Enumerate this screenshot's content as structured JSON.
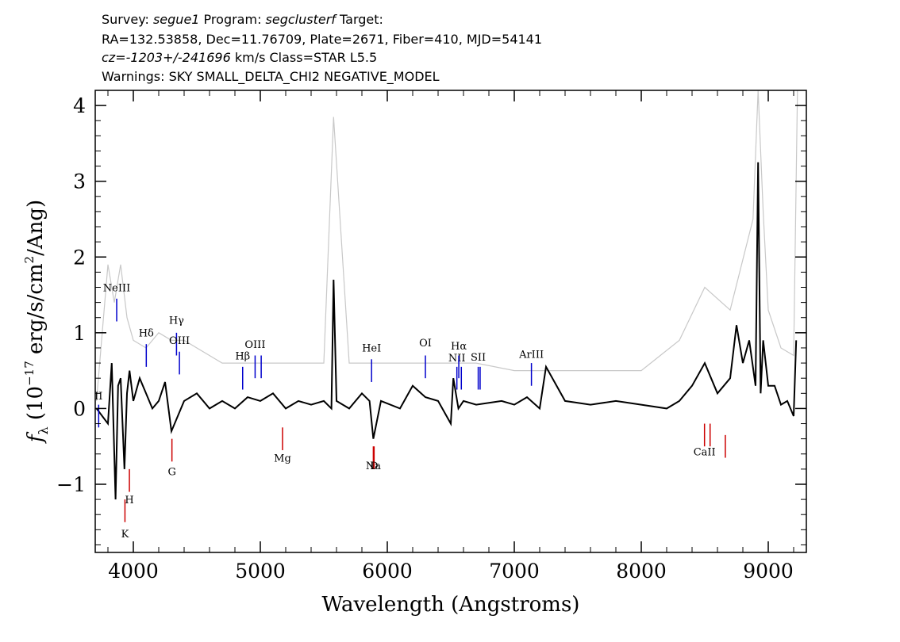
{
  "header": {
    "line1": {
      "a": "Survey: ",
      "b": "segue1",
      "c": " Program: ",
      "d": "segclusterf",
      "e": " Target:"
    },
    "line2": "RA=132.53858, Dec=11.76709, Plate=2671, Fiber=410, MJD=54141",
    "line3": {
      "a": "cz=",
      "b": "-1203+/-241696",
      "c": " km/s  Class=STAR L5.5"
    },
    "line4": "Warnings: SKY SMALL_DELTA_CHI2 NEGATIVE_MODEL"
  },
  "chart_data": {
    "type": "line",
    "xlabel": "Wavelength (Angstroms)",
    "ylabel_parts": {
      "f": "f",
      "sub": "λ",
      "a": " (10",
      "exp": "−17",
      "b": " erg/s/cm",
      "exp2": "2",
      "c": "/Ang)"
    },
    "xlim": [
      3700,
      9300
    ],
    "ylim": [
      -1.9,
      4.2
    ],
    "xticks": [
      4000,
      5000,
      6000,
      7000,
      8000,
      9000
    ],
    "xtick_labels": [
      "4000",
      "5000",
      "6000",
      "7000",
      "8000",
      "9000"
    ],
    "yticks": [
      -1,
      0,
      1,
      2,
      3,
      4
    ],
    "ytick_labels": [
      "−1",
      "0",
      "1",
      "2",
      "3",
      "4"
    ],
    "series": [
      {
        "role": "error",
        "color": "#c8c8c8",
        "x": [
          3710,
          3750,
          3800,
          3850,
          3900,
          3950,
          4000,
          4100,
          4200,
          4300,
          4400,
          4500,
          4700,
          5000,
          5300,
          5500,
          5577,
          5700,
          6000,
          6300,
          6500,
          6700,
          7000,
          7500,
          8000,
          8300,
          8500,
          8700,
          8880,
          8920,
          8960,
          9000,
          9100,
          9200,
          9230
        ],
        "values": [
          0.1,
          0.9,
          1.9,
          1.4,
          1.9,
          1.2,
          0.9,
          0.8,
          1.0,
          0.9,
          0.9,
          0.8,
          0.6,
          0.6,
          0.6,
          0.6,
          3.85,
          0.6,
          0.6,
          0.6,
          0.6,
          0.6,
          0.5,
          0.5,
          0.5,
          0.9,
          1.6,
          1.3,
          2.5,
          4.2,
          2.6,
          1.3,
          0.8,
          0.7,
          4.2
        ]
      },
      {
        "role": "flux",
        "color": "#000000",
        "x": [
          3710,
          3800,
          3830,
          3860,
          3880,
          3900,
          3930,
          3950,
          3970,
          4000,
          4050,
          4100,
          4150,
          4200,
          4250,
          4300,
          4400,
          4500,
          4600,
          4700,
          4800,
          4900,
          5000,
          5100,
          5200,
          5300,
          5400,
          5500,
          5560,
          5577,
          5600,
          5700,
          5800,
          5860,
          5890,
          5950,
          6100,
          6200,
          6300,
          6400,
          6500,
          6520,
          6560,
          6600,
          6700,
          6900,
          7000,
          7100,
          7200,
          7250,
          7400,
          7600,
          7800,
          8000,
          8200,
          8300,
          8400,
          8500,
          8600,
          8700,
          8750,
          8800,
          8850,
          8900,
          8920,
          8940,
          8960,
          9000,
          9050,
          9100,
          9150,
          9200,
          9220
        ],
        "values": [
          0.0,
          -0.2,
          0.6,
          -1.2,
          0.3,
          0.4,
          -0.8,
          0.2,
          0.5,
          0.1,
          0.4,
          0.2,
          0.0,
          0.1,
          0.35,
          -0.3,
          0.1,
          0.2,
          0.0,
          0.1,
          0.0,
          0.15,
          0.1,
          0.2,
          0.0,
          0.1,
          0.05,
          0.1,
          0.0,
          1.7,
          0.1,
          0.0,
          0.2,
          0.1,
          -0.4,
          0.1,
          0.0,
          0.3,
          0.15,
          0.1,
          -0.2,
          0.4,
          0.0,
          0.1,
          0.05,
          0.1,
          0.05,
          0.15,
          0.0,
          0.55,
          0.1,
          0.05,
          0.1,
          0.05,
          0.0,
          0.1,
          0.3,
          0.6,
          0.2,
          0.4,
          1.1,
          0.6,
          0.9,
          0.3,
          3.25,
          0.2,
          0.9,
          0.3,
          0.3,
          0.05,
          0.1,
          -0.1,
          0.9
        ]
      }
    ],
    "emission_lines": [
      {
        "label": "NeIII",
        "x": 3869,
        "y0": 1.15,
        "y1": 1.45,
        "label_y": 1.55
      },
      {
        "label": "Hδ",
        "x": 4102,
        "y0": 0.55,
        "y1": 0.85,
        "label_y": 0.95
      },
      {
        "label": "Hγ",
        "x": 4340,
        "y0": 0.7,
        "y1": 1.0,
        "label_y": 1.12
      },
      {
        "label": "OIII",
        "x": 4363,
        "y0": 0.45,
        "y1": 0.75,
        "label_y": 0.85
      },
      {
        "label": "Hβ",
        "x": 4861,
        "y0": 0.25,
        "y1": 0.55,
        "label_y": 0.65
      },
      {
        "label": "OIII",
        "x": 4959,
        "y0": 0.4,
        "y1": 0.7,
        "label_y": 0.8
      },
      {
        "label": "OIII",
        "x": 5007,
        "y0": 0.4,
        "y1": 0.7
      },
      {
        "label": "HeI",
        "x": 5876,
        "y0": 0.35,
        "y1": 0.65,
        "label_y": 0.75
      },
      {
        "label": "OI",
        "x": 6300,
        "y0": 0.4,
        "y1": 0.7,
        "label_y": 0.82
      },
      {
        "label": "NII",
        "x": 6548,
        "y0": 0.25,
        "y1": 0.55,
        "label_y": 0.62
      },
      {
        "label": "Hα",
        "x": 6563,
        "y0": 0.4,
        "y1": 0.7,
        "label_y": 0.78
      },
      {
        "label": "NII",
        "x": 6583,
        "y0": 0.25,
        "y1": 0.55
      },
      {
        "label": "SII",
        "x": 6716,
        "y0": 0.25,
        "y1": 0.55,
        "label_y": 0.63
      },
      {
        "label": "SII",
        "x": 6731,
        "y0": 0.25,
        "y1": 0.55
      },
      {
        "label": "ArIII",
        "x": 7135,
        "y0": 0.3,
        "y1": 0.6,
        "label_y": 0.67
      },
      {
        "label": "II",
        "x": 3727,
        "y0": -0.25,
        "y1": 0.05,
        "label_y": 0.12
      }
    ],
    "absorption_lines": [
      {
        "label": "K",
        "x": 3934,
        "y0": -1.2,
        "y1": -1.5,
        "label_y": -1.7
      },
      {
        "label": "H",
        "x": 3969,
        "y0": -0.8,
        "y1": -1.1,
        "label_y": -1.25
      },
      {
        "label": "G",
        "x": 4304,
        "y0": -0.4,
        "y1": -0.7,
        "label_y": -0.88
      },
      {
        "label": "Mg",
        "x": 5175,
        "y0": -0.25,
        "y1": -0.55,
        "label_y": -0.7
      },
      {
        "label": "Na",
        "x": 5890,
        "y0": -0.5,
        "y1": -0.8,
        "label_y": -0.8
      },
      {
        "label": "D",
        "x": 5896,
        "y0": -0.5,
        "y1": -0.8,
        "label_y": -0.8
      },
      {
        "label": "CaII",
        "x": 8498,
        "y0": -0.2,
        "y1": -0.5,
        "label_y": -0.62
      },
      {
        "label": "CaII",
        "x": 8542,
        "y0": -0.2,
        "y1": -0.5
      },
      {
        "label": "CaII",
        "x": 8662,
        "y0": -0.35,
        "y1": -0.65
      }
    ],
    "colors": {
      "emission": "#0000cc",
      "absorption": "#cc0000",
      "error": "#c8c8c8",
      "flux": "#000000"
    }
  }
}
